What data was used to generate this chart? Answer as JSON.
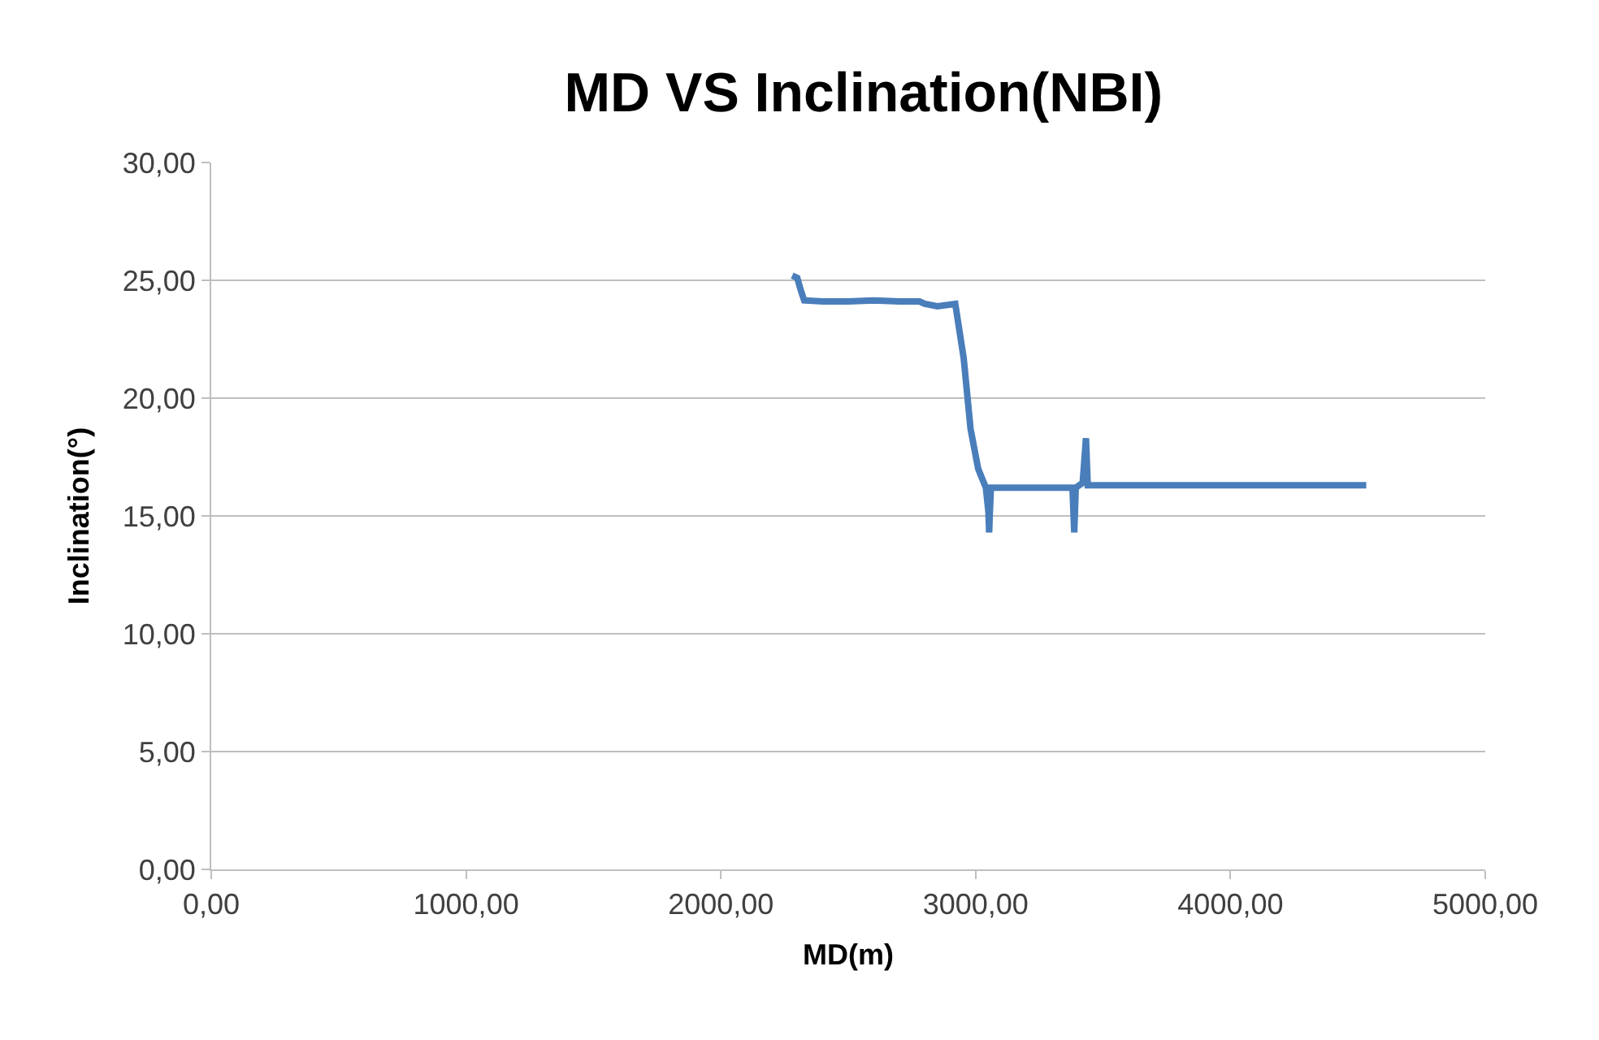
{
  "chart_data": {
    "type": "line",
    "title": "MD VS Inclination(NBI)",
    "xlabel": "MD(m)",
    "ylabel": "Inclination(°)",
    "x": [
      2280,
      2300,
      2313,
      2327,
      2400,
      2500,
      2600,
      2700,
      2780,
      2800,
      2850,
      2920,
      2953,
      2980,
      3010,
      3040,
      3050,
      3053,
      3056,
      3060,
      3200,
      3380,
      3387,
      3393,
      3420,
      3433,
      3440,
      3600,
      4000,
      4300,
      4533
    ],
    "series": [
      {
        "color": "#4a7ebb",
        "values": [
          25.2,
          25.1,
          24.6,
          24.15,
          24.1,
          24.1,
          24.15,
          24.1,
          24.1,
          24.0,
          23.9,
          24.0,
          21.7,
          18.7,
          17.0,
          16.2,
          15.2,
          14.3,
          15.2,
          16.2,
          16.2,
          16.2,
          14.3,
          16.2,
          16.4,
          18.3,
          16.3,
          16.3,
          16.3,
          16.3,
          16.3
        ]
      }
    ],
    "xlim": [
      0,
      5000
    ],
    "xticks": [
      {
        "value": 0,
        "label": "0,00"
      },
      {
        "value": 1000,
        "label": "1000,00"
      },
      {
        "value": 2000,
        "label": "2000,00"
      },
      {
        "value": 3000,
        "label": "3000,00"
      },
      {
        "value": 4000,
        "label": "4000,00"
      },
      {
        "value": 5000,
        "label": "5000,00"
      }
    ],
    "ylim": [
      0,
      30
    ],
    "yticks": [
      {
        "value": 0,
        "label": "0,00"
      },
      {
        "value": 5,
        "label": "5,00"
      },
      {
        "value": 10,
        "label": "10,00"
      },
      {
        "value": 15,
        "label": "15,00"
      },
      {
        "value": 20,
        "label": "20,00"
      },
      {
        "value": 25,
        "label": "25,00"
      },
      {
        "value": 30,
        "label": "30,00"
      }
    ],
    "grid": "y",
    "marker": "none",
    "line_style": "solid",
    "legend": false
  }
}
